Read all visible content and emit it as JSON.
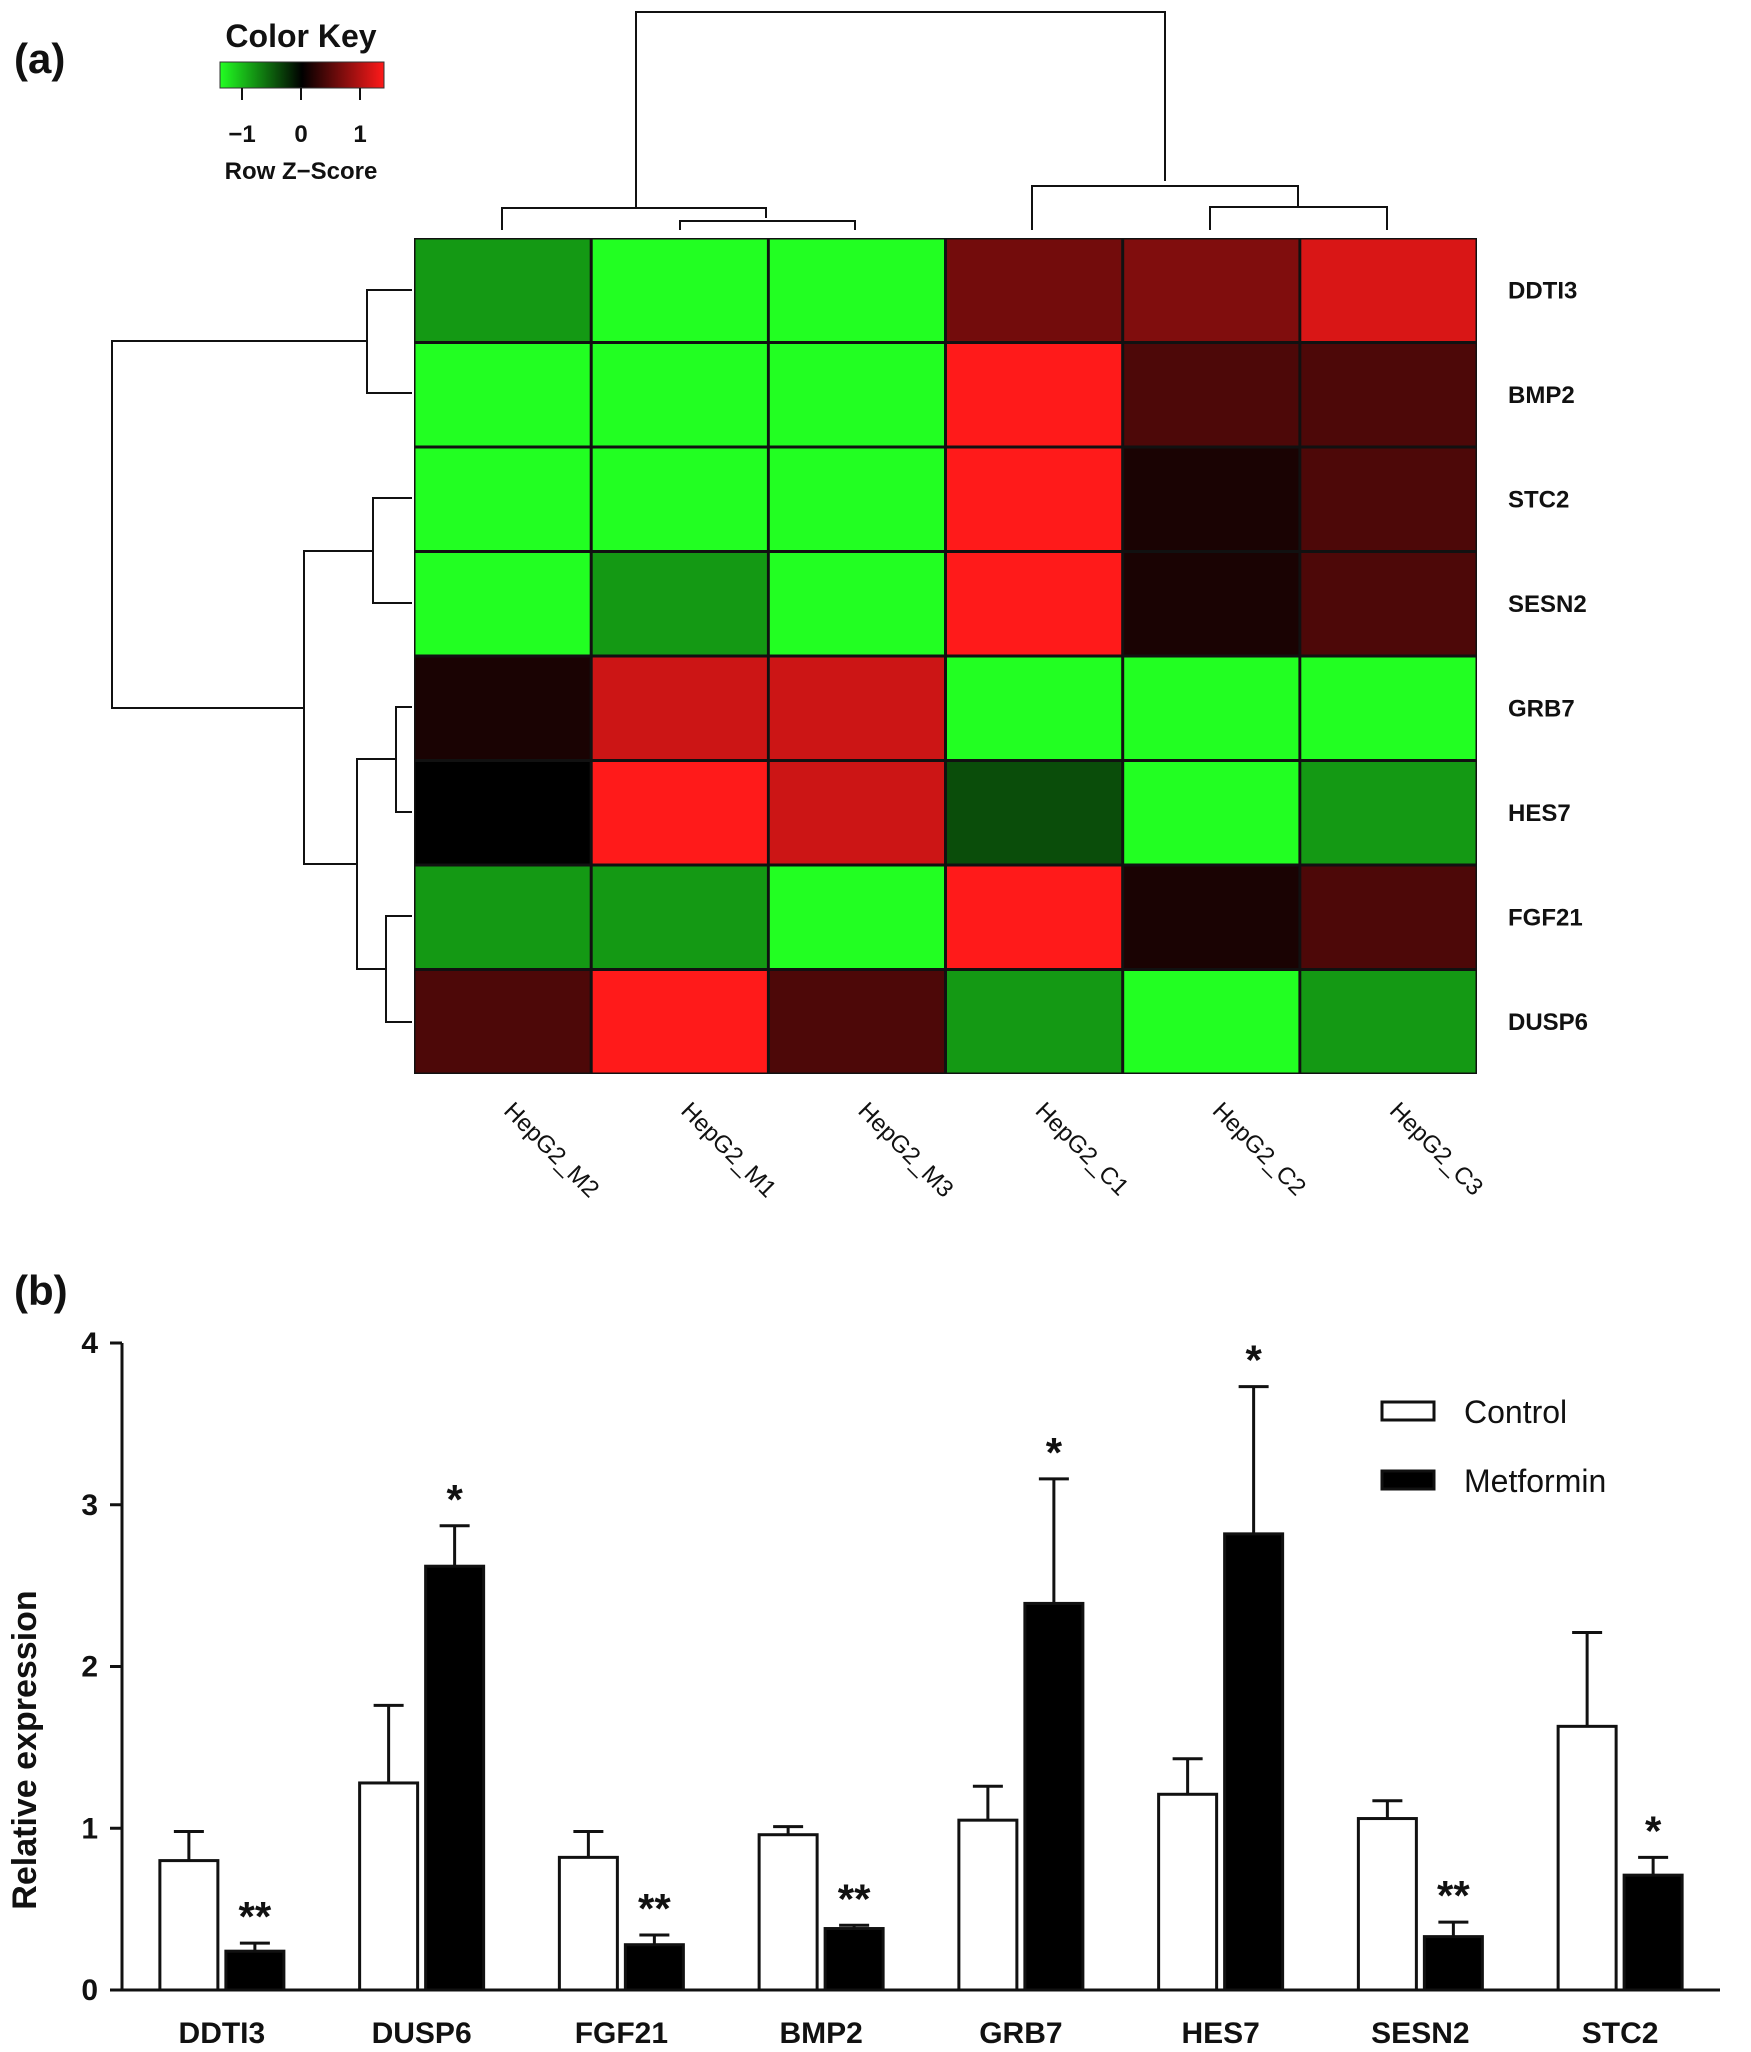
{
  "panels": {
    "a": "(a)",
    "b": "(b)"
  },
  "chart_data": [
    {
      "type": "heatmap",
      "color_key": {
        "title": "Color Key",
        "ticks": [
          "−1",
          "0",
          "1"
        ],
        "label": "Row Z−Score",
        "colors": {
          "low": "#22ff22",
          "mid": "#000000",
          "high": "#ff1a1a"
        }
      },
      "rows": [
        "DDTI3",
        "BMP2",
        "STC2",
        "SESN2",
        "GRB7",
        "HES7",
        "FGF21",
        "DUSP6"
      ],
      "columns": [
        "HepG2_M2",
        "HepG2_M1",
        "HepG2_M3",
        "HepG2_C1",
        "HepG2_C2",
        "HepG2_C3"
      ],
      "z": [
        [
          -0.6,
          -1.0,
          -1.0,
          0.45,
          0.5,
          0.85
        ],
        [
          -1.0,
          -1.0,
          -1.0,
          1.0,
          0.3,
          0.3
        ],
        [
          -1.0,
          -1.0,
          -1.0,
          1.0,
          0.1,
          0.3
        ],
        [
          -1.0,
          -0.6,
          -1.0,
          1.0,
          0.1,
          0.3
        ],
        [
          0.1,
          0.8,
          0.8,
          -1.0,
          -1.0,
          -1.0
        ],
        [
          0.0,
          1.0,
          0.8,
          -0.3,
          -1.0,
          -0.6
        ],
        [
          -0.6,
          -0.6,
          -1.0,
          1.0,
          0.1,
          0.3
        ],
        [
          0.3,
          1.0,
          0.3,
          -0.6,
          -1.0,
          -0.6
        ]
      ]
    },
    {
      "type": "bar",
      "categories": [
        "DDTI3",
        "DUSP6",
        "FGF21",
        "BMP2",
        "GRB7",
        "HES7",
        "SESN2",
        "STC2"
      ],
      "series": [
        {
          "name": "Control",
          "values": [
            0.8,
            1.28,
            0.82,
            0.96,
            1.05,
            1.21,
            1.06,
            1.63
          ],
          "errors": [
            0.18,
            0.48,
            0.16,
            0.05,
            0.21,
            0.22,
            0.11,
            0.58
          ],
          "color": "#ffffff"
        },
        {
          "name": "Metformin",
          "values": [
            0.24,
            2.62,
            0.28,
            0.38,
            2.39,
            2.82,
            0.33,
            0.71
          ],
          "errors": [
            0.05,
            0.25,
            0.06,
            0.02,
            0.77,
            0.91,
            0.09,
            0.11
          ],
          "color": "#000000"
        }
      ],
      "significance": [
        "**",
        "*",
        "**",
        "**",
        "*",
        "*",
        "**",
        "*"
      ],
      "ylabel": "Relative expression",
      "xlabel": "",
      "ylim": [
        0,
        4
      ],
      "yticks": [
        "0",
        "1",
        "2",
        "3",
        "4"
      ],
      "legend_position": "top-right"
    }
  ]
}
